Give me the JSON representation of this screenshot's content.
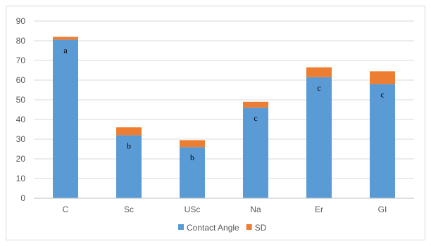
{
  "chart_data": {
    "type": "bar",
    "stacked": true,
    "categories": [
      "C",
      "Sc",
      "USc",
      "Na",
      "Er",
      "GI"
    ],
    "series": [
      {
        "name": "Contact Angle",
        "values": [
          80.5,
          32,
          26,
          46,
          61.5,
          58
        ],
        "color": "#5b9bd5"
      },
      {
        "name": "SD",
        "values": [
          1.5,
          4,
          3.5,
          3,
          5,
          6.5
        ],
        "color": "#ed7d31"
      }
    ],
    "data_labels": [
      "a",
      "b",
      "b",
      "c",
      "c",
      "c"
    ],
    "ylim": [
      0,
      90
    ],
    "yticks": [
      0,
      10,
      20,
      30,
      40,
      50,
      60,
      70,
      80,
      90
    ],
    "grid": true,
    "legend_position": "bottom"
  }
}
